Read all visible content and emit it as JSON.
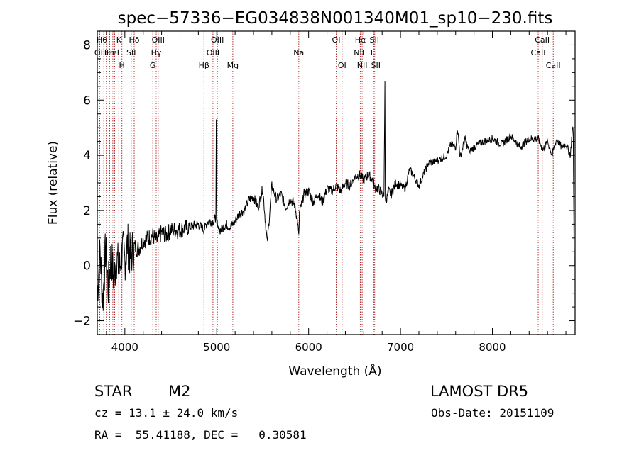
{
  "chart_data": {
    "type": "line",
    "title": "spec−57336−EG034838N001340M01_sp10−230.fits",
    "xlabel": "Wavelength (Å)",
    "ylabel": "Flux (relative)",
    "xlim": [
      3700,
      8900
    ],
    "ylim": [
      -2.5,
      8.5
    ],
    "xticks": [
      4000,
      5000,
      6000,
      7000,
      8000
    ],
    "yticks": [
      -2,
      0,
      2,
      4,
      6,
      8
    ],
    "grid": false,
    "series": [
      {
        "x": [
          3700,
          3730,
          3760,
          3790,
          3820,
          3850,
          3880,
          3910,
          3940,
          3970,
          4000,
          4030,
          4060,
          4100,
          4150,
          4200,
          4250,
          4300,
          4350,
          4400,
          4450,
          4500,
          4600,
          4700,
          4800,
          4860,
          4900,
          4950,
          4990,
          4995,
          5000,
          5010,
          5050,
          5100,
          5150,
          5200,
          5250,
          5300,
          5350,
          5400,
          5450,
          5500,
          5550,
          5600,
          5650,
          5700,
          5750,
          5800,
          5850,
          5880,
          5893,
          5900,
          5950,
          6000,
          6050,
          6100,
          6150,
          6200,
          6250,
          6300,
          6350,
          6400,
          6450,
          6500,
          6550,
          6600,
          6650,
          6700,
          6720,
          6760,
          6800,
          6820,
          6830,
          6835,
          6840,
          6850,
          6870,
          6900,
          6950,
          7000,
          7050,
          7100,
          7150,
          7200,
          7250,
          7300,
          7400,
          7500,
          7550,
          7600,
          7620,
          7650,
          7700,
          7750,
          7800,
          7900,
          8000,
          8100,
          8200,
          8300,
          8400,
          8500,
          8550,
          8600,
          8650,
          8700,
          8750,
          8800,
          8850,
          8870,
          8880,
          8890
        ],
        "y": [
          -1.0,
          0.5,
          -1.3,
          0.6,
          -0.8,
          0.4,
          -0.5,
          0.3,
          -0.2,
          0.6,
          0.2,
          0.8,
          0.3,
          0.7,
          0.6,
          0.9,
          1.0,
          1.1,
          0.9,
          1.2,
          1.1,
          1.3,
          1.3,
          1.4,
          1.5,
          1.3,
          1.6,
          1.6,
          1.7,
          5.3,
          1.7,
          1.3,
          1.3,
          1.5,
          1.4,
          1.6,
          1.9,
          2.0,
          2.4,
          2.5,
          2.1,
          2.8,
          0.8,
          2.9,
          2.4,
          2.6,
          2.1,
          2.4,
          2.2,
          1.6,
          1.0,
          1.9,
          2.6,
          2.7,
          2.3,
          2.6,
          2.3,
          2.8,
          2.7,
          2.9,
          2.7,
          3.0,
          2.9,
          3.2,
          3.3,
          3.1,
          3.3,
          3.1,
          2.8,
          2.8,
          2.6,
          2.5,
          6.7,
          2.4,
          2.5,
          2.4,
          2.7,
          2.6,
          3.0,
          2.9,
          2.8,
          3.5,
          3.2,
          2.9,
          3.3,
          3.7,
          3.8,
          4.0,
          4.4,
          4.3,
          5.0,
          3.9,
          4.6,
          4.1,
          4.3,
          4.5,
          4.6,
          4.4,
          4.7,
          4.3,
          4.6,
          4.6,
          4.2,
          4.5,
          4.0,
          4.6,
          4.3,
          4.4,
          4.0,
          5.0,
          4.8,
          0.0
        ]
      }
    ],
    "line_markers": [
      {
        "wl": 3727,
        "label": "OII",
        "row": 1
      },
      {
        "wl": 3750,
        "label": "Hθ",
        "row": 0
      },
      {
        "wl": 3771,
        "label": "",
        "row": -1
      },
      {
        "wl": 3798,
        "label": "",
        "row": -1
      },
      {
        "wl": 3835,
        "label": "Hη",
        "row": 1
      },
      {
        "wl": 3869,
        "label": "HeI",
        "row": 1
      },
      {
        "wl": 3889,
        "label": "",
        "row": -1
      },
      {
        "wl": 3934,
        "label": "K",
        "row": 0
      },
      {
        "wl": 3968,
        "label": "H",
        "row": 2
      },
      {
        "wl": 4069,
        "label": "SII",
        "row": 1
      },
      {
        "wl": 4102,
        "label": "Hδ",
        "row": 0
      },
      {
        "wl": 4304,
        "label": "G",
        "row": 2
      },
      {
        "wl": 4341,
        "label": "Hγ",
        "row": 1
      },
      {
        "wl": 4363,
        "label": "OIII",
        "row": 0
      },
      {
        "wl": 4861,
        "label": "Hβ",
        "row": 2
      },
      {
        "wl": 4959,
        "label": "OIII",
        "row": 1
      },
      {
        "wl": 5007,
        "label": "OIII",
        "row": 0
      },
      {
        "wl": 5175,
        "label": "Mg",
        "row": 2
      },
      {
        "wl": 5893,
        "label": "Na",
        "row": 1
      },
      {
        "wl": 6300,
        "label": "OI",
        "row": 0
      },
      {
        "wl": 6364,
        "label": "OI",
        "row": 2
      },
      {
        "wl": 6548,
        "label": "NII",
        "row": 1
      },
      {
        "wl": 6563,
        "label": "Hα",
        "row": 0
      },
      {
        "wl": 6583,
        "label": "NII",
        "row": 2
      },
      {
        "wl": 6708,
        "label": "Li",
        "row": 1
      },
      {
        "wl": 6716,
        "label": "SII",
        "row": 0
      },
      {
        "wl": 6731,
        "label": "SII",
        "row": 2
      },
      {
        "wl": 8498,
        "label": "CaII",
        "row": 1
      },
      {
        "wl": 8542,
        "label": "CaII",
        "row": 0
      },
      {
        "wl": 8662,
        "label": "CaII",
        "row": 2
      }
    ]
  },
  "info": {
    "obj_type": "STAR",
    "obj_class": "M2",
    "survey": "LAMOST DR5",
    "cz": "cz = 13.1 ± 24.0 km/s",
    "obs_date": "Obs-Date: 20151109",
    "radec": "RA =  55.41188, DEC =   0.30581"
  }
}
